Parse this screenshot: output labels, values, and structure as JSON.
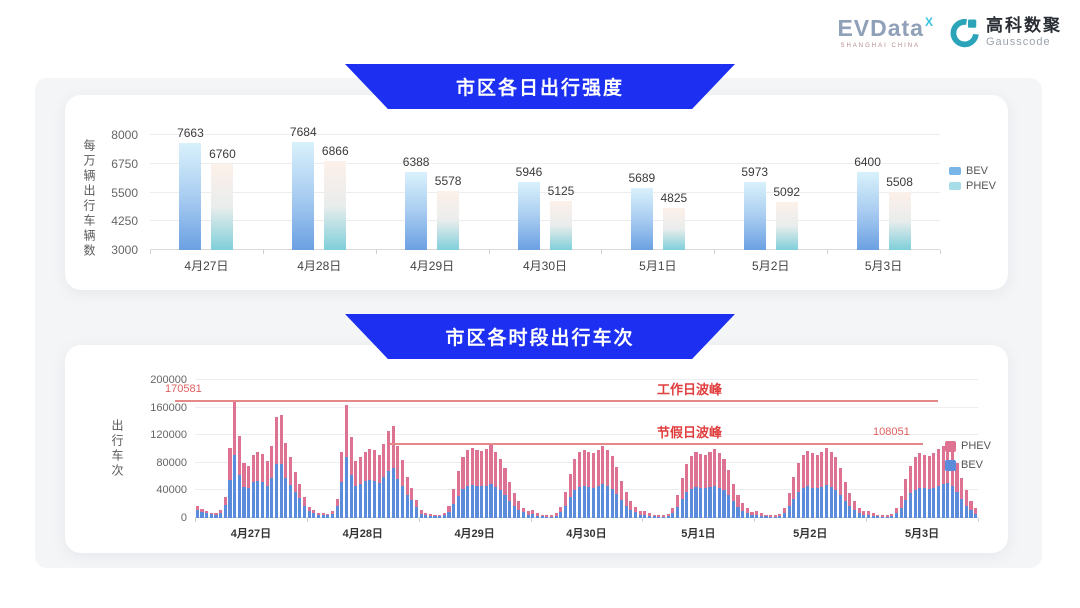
{
  "header": {
    "evdata": {
      "text": "EVData",
      "superscript": "X",
      "subtext": "SHANGHAI CHINA"
    },
    "gausscode": {
      "cn": "高科数聚",
      "en": "Gausscode"
    }
  },
  "colors": {
    "banner_blue": "#1d2ff0",
    "annotation_red": "#e03e3e",
    "annotation_number_red": "#e06060",
    "refline_red": "#e58888",
    "top_bev_gradient": [
      "#d9f1fb",
      "#a9cdf1",
      "#6ba0e2"
    ],
    "top_phev_gradient": [
      "#fdf0ea",
      "#e9edec",
      "#7fcfda"
    ],
    "legend1_bev": "#7ab5e8",
    "legend1_phev": "#a6dde8",
    "bottom_bev": "#5b8bdb",
    "bottom_phev": "#dd7292",
    "logo_teal": "#2ba4ba"
  },
  "chart_data": [
    {
      "type": "bar",
      "title": "市区各日出行强度",
      "ylabel": "每万辆出行车辆数",
      "ylim": [
        3000,
        8000
      ],
      "yticks": [
        3000,
        4250,
        5500,
        6750,
        8000
      ],
      "grid": true,
      "legend_position": "right",
      "categories": [
        "4月27日",
        "4月28日",
        "4月29日",
        "4月30日",
        "5月1日",
        "5月2日",
        "5月3日"
      ],
      "series": [
        {
          "name": "BEV",
          "values": [
            7663,
            7684,
            6388,
            5946,
            5689,
            5973,
            6400
          ]
        },
        {
          "name": "PHEV",
          "values": [
            6760,
            6866,
            5578,
            5125,
            4825,
            5092,
            5508
          ]
        }
      ]
    },
    {
      "type": "stacked-bar",
      "title": "市区各时段出行车次",
      "ylabel": "出行车次",
      "ylim": [
        0,
        200000
      ],
      "yticks": [
        0,
        40000,
        80000,
        120000,
        160000,
        200000
      ],
      "grid": true,
      "legend_position": "right",
      "legend": [
        "PHEV",
        "BEV"
      ],
      "annotations": {
        "workday_peak": {
          "label": "工作日波峰",
          "value": 170581,
          "value_label": "170581"
        },
        "holiday_peak": {
          "label": "节假日波峰",
          "value": 108051,
          "value_label": "108051"
        }
      },
      "days": [
        {
          "label": "4月27日",
          "bev": [
            12000,
            9000,
            7000,
            5500,
            5000,
            7000,
            19000,
            55000,
            91000,
            63000,
            45000,
            43000,
            52000,
            54000,
            52000,
            46000,
            58000,
            78000,
            79000,
            58000,
            48000,
            37000,
            29000,
            18000
          ],
          "phev": [
            6000,
            4000,
            3000,
            2500,
            2000,
            4000,
            11000,
            46000,
            79581,
            56000,
            35000,
            33000,
            40000,
            42000,
            41000,
            36000,
            46000,
            68000,
            70000,
            50000,
            41000,
            29000,
            21000,
            12000
          ]
        },
        {
          "label": "4月28日",
          "bev": [
            10000,
            7000,
            5000,
            4500,
            4000,
            6500,
            18000,
            52000,
            88000,
            62000,
            46000,
            49000,
            53000,
            55000,
            54000,
            51000,
            59000,
            68000,
            72000,
            56000,
            46000,
            34000,
            26000,
            16000
          ],
          "phev": [
            6000,
            4000,
            3000,
            2500,
            2000,
            3500,
            10000,
            43000,
            76000,
            55000,
            36000,
            39000,
            43000,
            45000,
            44000,
            41000,
            49000,
            58000,
            61000,
            48000,
            38000,
            26000,
            18000,
            10000
          ]
        },
        {
          "label": "4月29日",
          "bev": [
            6000,
            4000,
            3000,
            2500,
            2500,
            4000,
            9000,
            20000,
            32000,
            42000,
            46000,
            48000,
            47000,
            46000,
            47000,
            50000,
            45000,
            40000,
            34000,
            25000,
            17000,
            12000,
            8000,
            5000
          ],
          "phev": [
            6000,
            4000,
            3000,
            2500,
            2500,
            4000,
            9000,
            22000,
            36000,
            46000,
            52000,
            54000,
            52000,
            51000,
            53000,
            57000,
            51000,
            46000,
            38000,
            27000,
            19000,
            12000,
            7000,
            5000
          ]
        },
        {
          "label": "4月30日",
          "bev": [
            5500,
            3500,
            2500,
            2000,
            2000,
            3500,
            8000,
            18000,
            30000,
            40000,
            45000,
            47000,
            45000,
            44000,
            46000,
            49000,
            46000,
            42000,
            35000,
            26000,
            18000,
            12000,
            8000,
            5000
          ],
          "phev": [
            5500,
            3500,
            2500,
            2000,
            2000,
            3500,
            8000,
            20000,
            34000,
            45000,
            50000,
            52000,
            51000,
            50000,
            52000,
            55000,
            52000,
            48000,
            39000,
            28000,
            20000,
            13000,
            8000,
            5000
          ]
        },
        {
          "label": "5月1日",
          "bev": [
            5000,
            3500,
            2500,
            2000,
            2000,
            3000,
            7000,
            16000,
            27000,
            37000,
            42000,
            45000,
            44000,
            43000,
            45000,
            47000,
            44000,
            40000,
            33000,
            24000,
            16000,
            10000,
            7000,
            4500
          ],
          "phev": [
            5000,
            3500,
            2500,
            2000,
            2000,
            3000,
            7000,
            18000,
            31000,
            41000,
            48000,
            50000,
            49000,
            48000,
            50000,
            53000,
            50000,
            45000,
            37000,
            26000,
            18000,
            12000,
            7000,
            4500
          ]
        },
        {
          "label": "5月2日",
          "bev": [
            5000,
            3500,
            2500,
            2000,
            2000,
            3000,
            7500,
            17000,
            28000,
            38000,
            43000,
            46000,
            44000,
            43000,
            45000,
            48000,
            45000,
            41000,
            34000,
            24000,
            17000,
            11000,
            7000,
            5000
          ],
          "phev": [
            5000,
            3500,
            2500,
            2000,
            2000,
            3000,
            7500,
            19000,
            32000,
            42000,
            49000,
            51000,
            50000,
            49000,
            51000,
            54000,
            51000,
            47000,
            38000,
            28000,
            19000,
            13000,
            8000,
            5000
          ]
        },
        {
          "label": "5月3日",
          "bev": [
            5000,
            3500,
            2500,
            2000,
            2000,
            3000,
            7000,
            15000,
            26000,
            36000,
            41000,
            44000,
            43000,
            42000,
            44000,
            47000,
            49000,
            51000,
            46000,
            37000,
            27000,
            18000,
            11000,
            6500
          ],
          "phev": [
            5000,
            3500,
            2500,
            2000,
            2000,
            3000,
            7000,
            17000,
            30000,
            40000,
            47000,
            50000,
            49000,
            48000,
            50000,
            53000,
            55000,
            57051,
            53000,
            43000,
            31000,
            22000,
            13000,
            7500
          ]
        }
      ]
    }
  ]
}
